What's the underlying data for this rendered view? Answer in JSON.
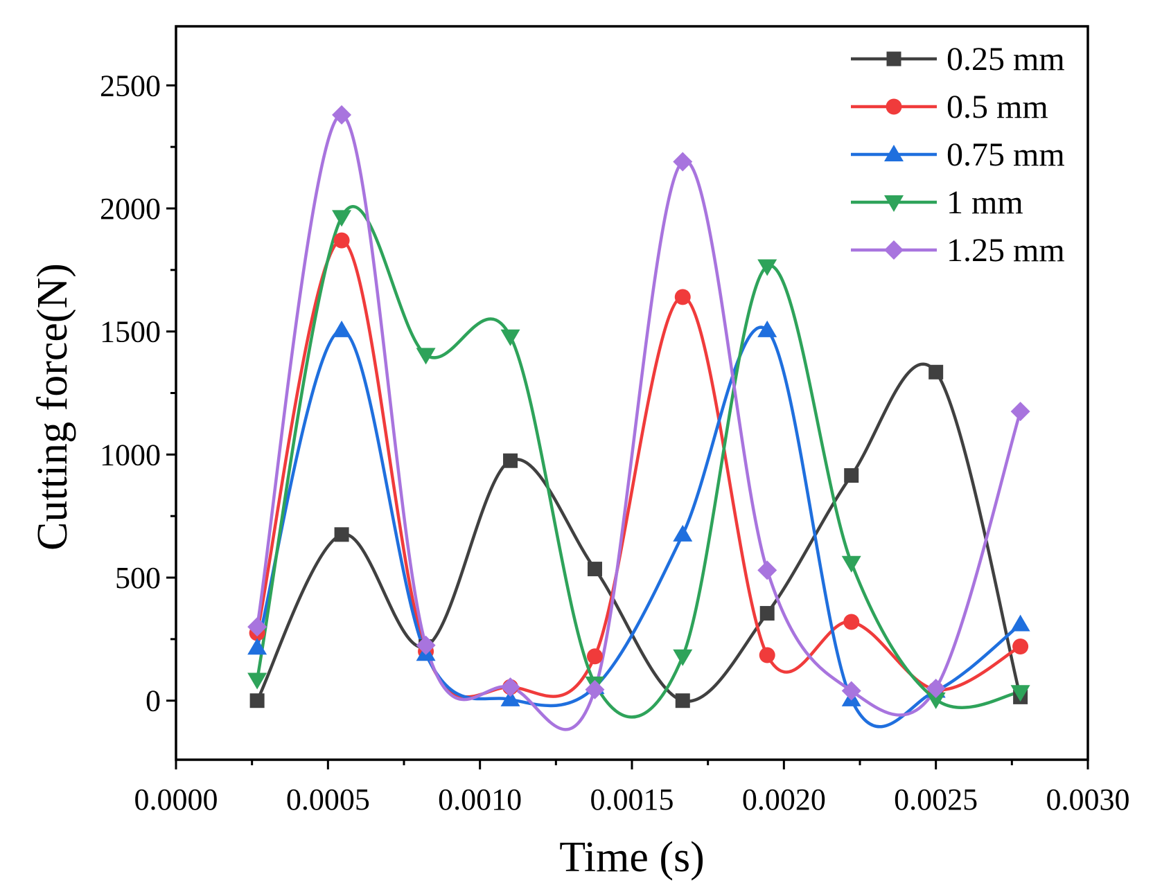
{
  "chart_data": {
    "type": "line",
    "title": "",
    "xlabel": "Time (s)",
    "ylabel": "Cutting force(N)",
    "xlim": [
      0,
      0.003
    ],
    "ylim": [
      -240,
      2740
    ],
    "x_ticks": [
      0,
      0.0005,
      0.001,
      0.0015,
      0.002,
      0.0025,
      0.003
    ],
    "x_tick_labels": [
      "0.0000",
      "0.0005",
      "0.0010",
      "0.0015",
      "0.0020",
      "0.0025",
      "0.0030"
    ],
    "y_ticks": [
      0,
      500,
      1000,
      1500,
      2000,
      2500
    ],
    "y_tick_labels": [
      "0",
      "500",
      "1000",
      "1500",
      "2000",
      "2500"
    ],
    "legend_position": "top-right",
    "x": [
      0.000267,
      0.000545,
      0.000822,
      0.0011,
      0.001378,
      0.001667,
      0.001945,
      0.002222,
      0.0025,
      0.002778
    ],
    "series": [
      {
        "name": "0.25 mm",
        "color": "#404040",
        "marker": "square",
        "values": [
          0,
          675,
          220,
          975,
          535,
          0,
          355,
          915,
          1335,
          15
        ]
      },
      {
        "name": "0.5 mm",
        "color": "#f03b3b",
        "marker": "circle",
        "values": [
          275,
          1870,
          200,
          55,
          180,
          1640,
          185,
          320,
          45,
          220
        ]
      },
      {
        "name": "0.75 mm",
        "color": "#1f6fde",
        "marker": "triangle-up",
        "values": [
          215,
          1505,
          190,
          5,
          55,
          675,
          1505,
          5,
          40,
          310
        ]
      },
      {
        "name": "1 mm",
        "color": "#2ea35a",
        "marker": "triangle-down",
        "values": [
          85,
          1965,
          1405,
          1480,
          70,
          180,
          1765,
          560,
          5,
          35
        ]
      },
      {
        "name": "1.25 mm",
        "color": "#a874de",
        "marker": "diamond",
        "values": [
          300,
          2380,
          225,
          55,
          45,
          2190,
          530,
          40,
          50,
          1175
        ]
      }
    ]
  }
}
